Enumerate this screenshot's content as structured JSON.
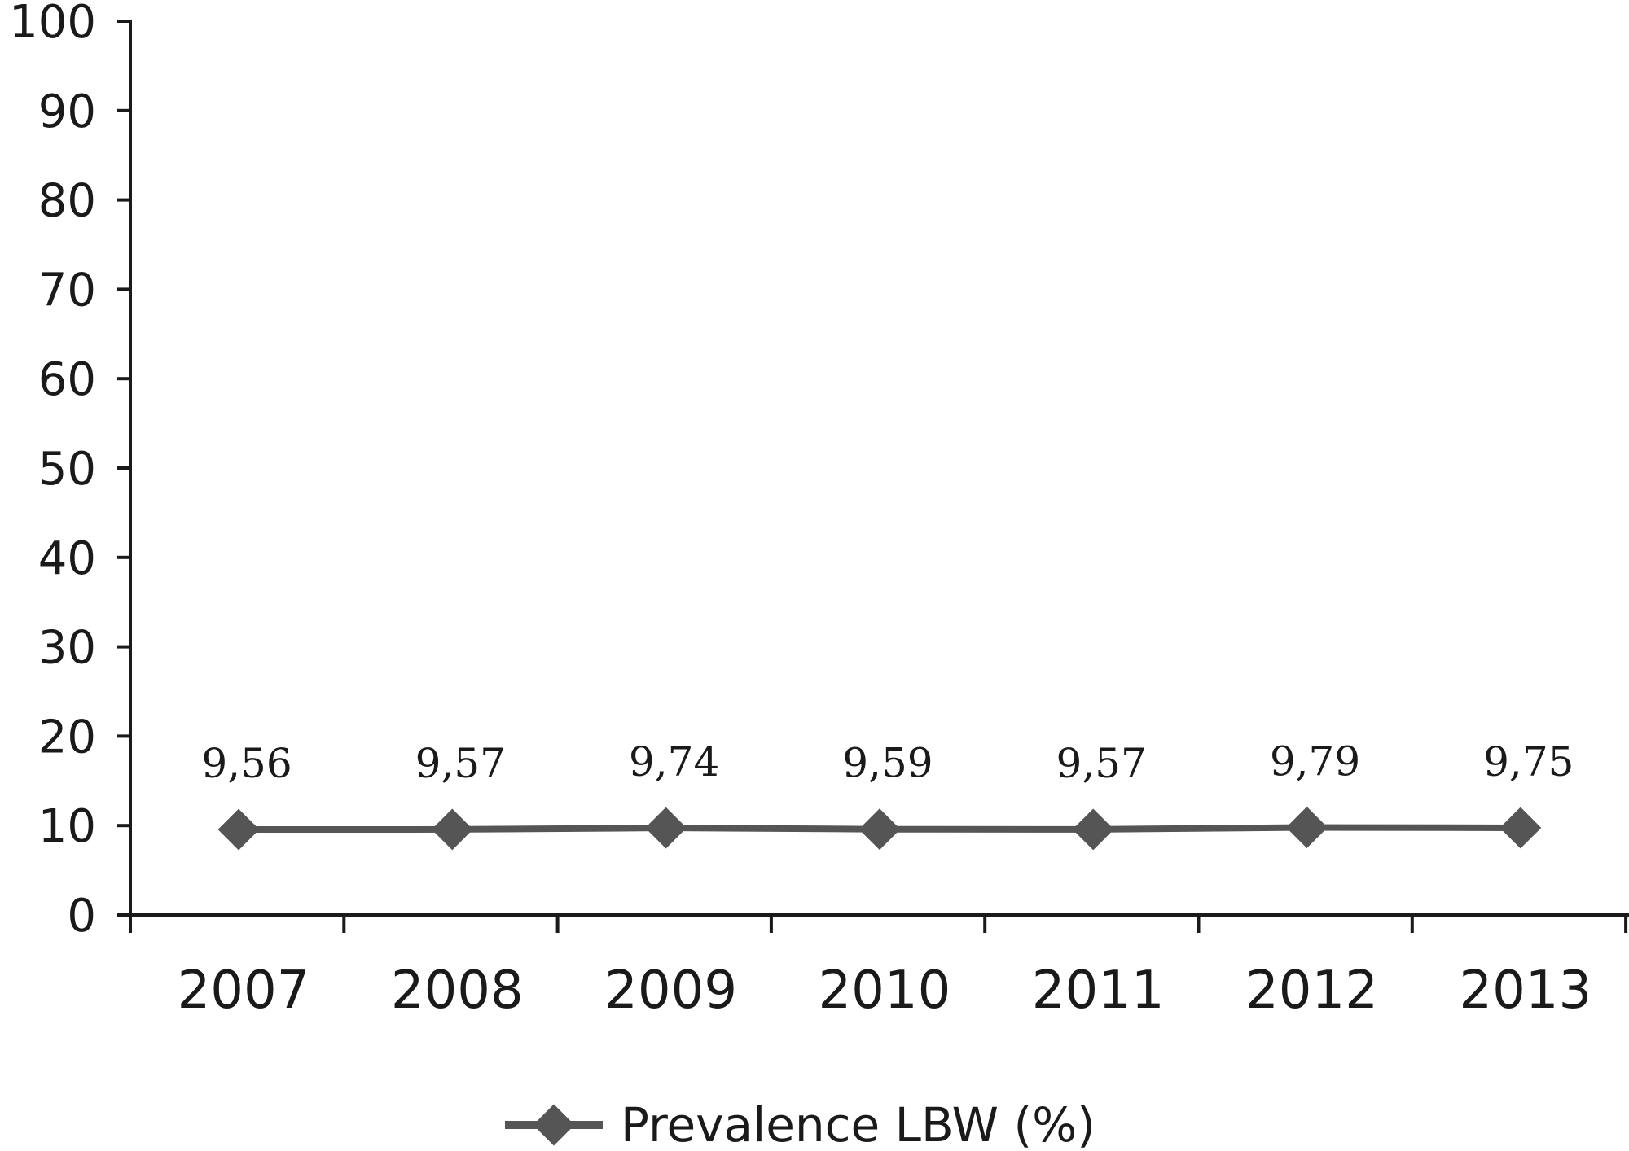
{
  "chart_data": {
    "type": "line",
    "categories": [
      "2007",
      "2008",
      "2009",
      "2010",
      "2011",
      "2012",
      "2013"
    ],
    "series": [
      {
        "name": "Prevalence LBW (%)",
        "values": [
          9.56,
          9.57,
          9.74,
          9.59,
          9.57,
          9.79,
          9.75
        ],
        "data_labels": [
          "9,56",
          "9,57",
          "9,74",
          "9,59",
          "9,57",
          "9,79",
          "9,75"
        ],
        "color": "#555555",
        "marker": "diamond"
      }
    ],
    "yticks": [
      "0",
      "10",
      "20",
      "30",
      "40",
      "50",
      "60",
      "70",
      "80",
      "90",
      "100"
    ],
    "ylim": [
      0,
      100
    ],
    "grid": false,
    "legend": "bottom-center",
    "title": "",
    "xlabel": "",
    "ylabel": ""
  }
}
